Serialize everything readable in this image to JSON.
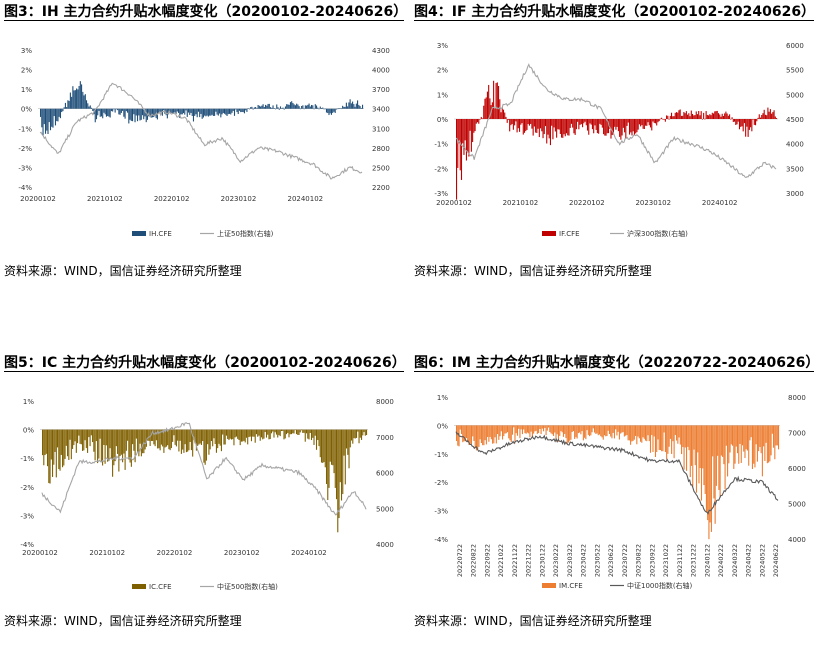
{
  "charts": [
    {
      "title": "图3：IH 主力合约升贴水幅度变化（20200102-20240626）",
      "source": "资料来源：WIND，国信证券经济研究所整理",
      "bar_color": "#1f4e79",
      "line_color": "#a6a6a6",
      "legend_bar": "IH.CFE",
      "legend_line": "上证50指数(右轴)",
      "left_ticks": [
        "3%",
        "2%",
        "1%",
        "0%",
        "-1%",
        "-2%",
        "-3%",
        "-4%"
      ],
      "right_ticks": [
        "4300",
        "4000",
        "3700",
        "3400",
        "3100",
        "2800",
        "2500",
        "2200"
      ],
      "x_ticks": [
        "20200102",
        "20210102",
        "20220102",
        "20230102",
        "20240102"
      ]
    },
    {
      "title": "图4：IF 主力合约升贴水幅度变化（20200102-20240626）",
      "source": "资料来源：WIND，国信证券经济研究所整理",
      "bar_color": "#c00000",
      "line_color": "#a6a6a6",
      "legend_bar": "IF.CFE",
      "legend_line": "沪深300指数(右轴)",
      "left_ticks": [
        "3%",
        "2%",
        "1%",
        "0%",
        "-1%",
        "-2%",
        "-3%"
      ],
      "right_ticks": [
        "6000",
        "5500",
        "5000",
        "4500",
        "4000",
        "3500",
        "3000"
      ],
      "x_ticks": [
        "20200102",
        "20210102",
        "20220102",
        "20230102",
        "20240102"
      ]
    },
    {
      "title": "图5：IC 主力合约升贴水幅度变化（20200102-20240626）",
      "source": "资料来源：WIND，国信证券经济研究所整理",
      "bar_color": "#7f6000",
      "line_color": "#a6a6a6",
      "legend_bar": "IC.CFE",
      "legend_line": "中证500指数(右轴)",
      "left_ticks": [
        "1%",
        "0%",
        "-1%",
        "-2%",
        "-3%",
        "-4%"
      ],
      "right_ticks": [
        "8000",
        "7000",
        "6000",
        "5000",
        "4000"
      ],
      "x_ticks": [
        "20200102",
        "20210102",
        "20220102",
        "20230102",
        "20240102"
      ]
    },
    {
      "title": "图6：IM 主力合约升贴水幅度变化（20220722-20240626）",
      "source": "资料来源：WIND，国信证券经济研究所整理",
      "bar_color": "#ed7d31",
      "line_color": "#595959",
      "legend_bar": "IM.CFE",
      "legend_line": "中证1000指数(右轴)",
      "left_ticks": [
        "1%",
        "0%",
        "-1%",
        "-2%",
        "-3%",
        "-4%"
      ],
      "right_ticks": [
        "8000",
        "7000",
        "6000",
        "5000",
        "4000"
      ],
      "x_ticks": [
        "20220722",
        "20220822",
        "20220922",
        "20221022",
        "20221122",
        "20221222",
        "20230122",
        "20230222",
        "20230322",
        "20230422",
        "20230522",
        "20230622",
        "20230722",
        "20230822",
        "20230922",
        "20231022",
        "20231122",
        "20231222",
        "20240122",
        "20240222",
        "20240322",
        "20240422",
        "20240522",
        "20240622"
      ]
    }
  ],
  "chart_data": [
    {
      "type": "bar",
      "title": "图3：IH 主力合约升贴水幅度变化（20200102-20240626）",
      "series": [
        {
          "name": "IH.CFE",
          "type": "bar",
          "axis": "left",
          "x": [
            "2020-01",
            "2020-04",
            "2020-07",
            "2020-10",
            "2021-01",
            "2021-04",
            "2021-07",
            "2021-10",
            "2022-01",
            "2022-04",
            "2022-07",
            "2022-10",
            "2023-01",
            "2023-04",
            "2023-07",
            "2023-10",
            "2024-01",
            "2024-04",
            "2024-06"
          ],
          "values": [
            -1.5,
            -0.6,
            1.6,
            -0.5,
            -0.3,
            -0.6,
            -0.5,
            -0.3,
            -0.4,
            -0.5,
            -0.3,
            -0.2,
            0.2,
            0.1,
            0.3,
            0.2,
            -0.3,
            0.4,
            0.3
          ]
        },
        {
          "name": "上证50指数(右轴)",
          "type": "line",
          "axis": "right",
          "x": [
            "2020-01",
            "2020-04",
            "2020-07",
            "2020-10",
            "2021-01",
            "2021-04",
            "2021-07",
            "2021-10",
            "2022-01",
            "2022-04",
            "2022-07",
            "2022-10",
            "2023-01",
            "2023-04",
            "2023-07",
            "2023-10",
            "2024-01",
            "2024-04",
            "2024-06"
          ],
          "values": [
            3050,
            2700,
            3200,
            3350,
            3800,
            3600,
            3300,
            3350,
            3250,
            2850,
            2950,
            2600,
            2800,
            2750,
            2650,
            2550,
            2330,
            2500,
            2430
          ]
        }
      ],
      "ylim_left": [
        -4,
        3
      ],
      "ylim_right": [
        2200,
        4300
      ]
    },
    {
      "type": "bar",
      "title": "图4：IF 主力合约升贴水幅度变化（20200102-20240626）",
      "series": [
        {
          "name": "IF.CFE",
          "type": "bar",
          "axis": "left",
          "x": [
            "2020-01",
            "2020-04",
            "2020-07",
            "2020-10",
            "2021-01",
            "2021-04",
            "2021-07",
            "2021-10",
            "2022-01",
            "2022-04",
            "2022-07",
            "2022-10",
            "2023-01",
            "2023-04",
            "2023-07",
            "2023-10",
            "2024-01",
            "2024-04",
            "2024-06"
          ],
          "values": [
            -2.6,
            -0.8,
            1.8,
            -0.5,
            -0.4,
            -0.8,
            -0.7,
            -0.4,
            -0.6,
            -0.8,
            -0.4,
            -0.3,
            0.3,
            0.2,
            0.3,
            0.2,
            -0.8,
            0.4,
            0.3
          ]
        },
        {
          "name": "沪深300指数(右轴)",
          "type": "line",
          "axis": "right",
          "x": [
            "2020-01",
            "2020-04",
            "2020-07",
            "2020-10",
            "2021-01",
            "2021-04",
            "2021-07",
            "2021-10",
            "2022-01",
            "2022-04",
            "2022-07",
            "2022-10",
            "2023-01",
            "2023-04",
            "2023-07",
            "2023-10",
            "2024-01",
            "2024-04",
            "2024-06"
          ],
          "values": [
            4100,
            3700,
            4700,
            4800,
            5600,
            5100,
            4900,
            4900,
            4700,
            4000,
            4200,
            3600,
            4100,
            4000,
            3850,
            3600,
            3300,
            3600,
            3500
          ]
        }
      ],
      "ylim_left": [
        -3,
        3
      ],
      "ylim_right": [
        3000,
        6000
      ]
    },
    {
      "type": "bar",
      "title": "图5：IC 主力合约升贴水幅度变化（20200102-20240626）",
      "series": [
        {
          "name": "IC.CFE",
          "type": "bar",
          "axis": "left",
          "x": [
            "2020-01",
            "2020-04",
            "2020-07",
            "2020-10",
            "2021-01",
            "2021-04",
            "2021-07",
            "2021-10",
            "2022-01",
            "2022-04",
            "2022-07",
            "2022-10",
            "2023-01",
            "2023-04",
            "2023-07",
            "2023-10",
            "2024-01",
            "2024-04",
            "2024-06"
          ],
          "values": [
            -2.0,
            -1.2,
            -0.5,
            -1.0,
            -1.4,
            -1.0,
            -0.8,
            -0.6,
            -0.8,
            -1.0,
            -0.5,
            -0.4,
            -0.3,
            -0.2,
            -0.1,
            -0.6,
            -3.2,
            -0.4,
            -0.2
          ]
        },
        {
          "name": "中证500指数(右轴)",
          "type": "line",
          "axis": "right",
          "x": [
            "2020-01",
            "2020-04",
            "2020-07",
            "2020-10",
            "2021-01",
            "2021-04",
            "2021-07",
            "2021-10",
            "2022-01",
            "2022-04",
            "2022-07",
            "2022-10",
            "2023-01",
            "2023-04",
            "2023-07",
            "2023-10",
            "2024-01",
            "2024-04",
            "2024-06"
          ],
          "values": [
            5400,
            4900,
            6300,
            6300,
            6400,
            6400,
            7100,
            7200,
            7400,
            5800,
            6400,
            5800,
            6200,
            6100,
            6000,
            5500,
            4800,
            5500,
            5000
          ]
        }
      ],
      "ylim_left": [
        -4,
        1
      ],
      "ylim_right": [
        4000,
        8000
      ]
    },
    {
      "type": "bar",
      "title": "图6：IM 主力合约升贴水幅度变化（20220722-20240626）",
      "series": [
        {
          "name": "IM.CFE",
          "type": "bar",
          "axis": "left",
          "x": [
            "2022-07-22",
            "2022-09-22",
            "2022-11-22",
            "2023-01-22",
            "2023-03-22",
            "2023-05-22",
            "2023-07-22",
            "2023-09-22",
            "2023-11-22",
            "2024-01-22",
            "2024-03-22",
            "2024-05-22",
            "2024-06-26"
          ],
          "values": [
            -0.6,
            -0.9,
            -0.5,
            -0.2,
            -0.5,
            -0.3,
            -0.4,
            -0.8,
            -1.0,
            -3.4,
            -1.2,
            -1.5,
            -0.8
          ]
        },
        {
          "name": "中证1000指数(右轴)",
          "type": "line",
          "axis": "right",
          "x": [
            "2022-07-22",
            "2022-09-22",
            "2022-11-22",
            "2023-01-22",
            "2023-03-22",
            "2023-05-22",
            "2023-07-22",
            "2023-09-22",
            "2023-11-22",
            "2024-01-22",
            "2024-03-22",
            "2024-05-22",
            "2024-06-26"
          ],
          "values": [
            7000,
            6400,
            6700,
            6900,
            6700,
            6600,
            6500,
            6200,
            6200,
            4700,
            5700,
            5600,
            5100
          ]
        }
      ],
      "ylim_left": [
        -4,
        1
      ],
      "ylim_right": [
        4000,
        8000
      ]
    }
  ]
}
